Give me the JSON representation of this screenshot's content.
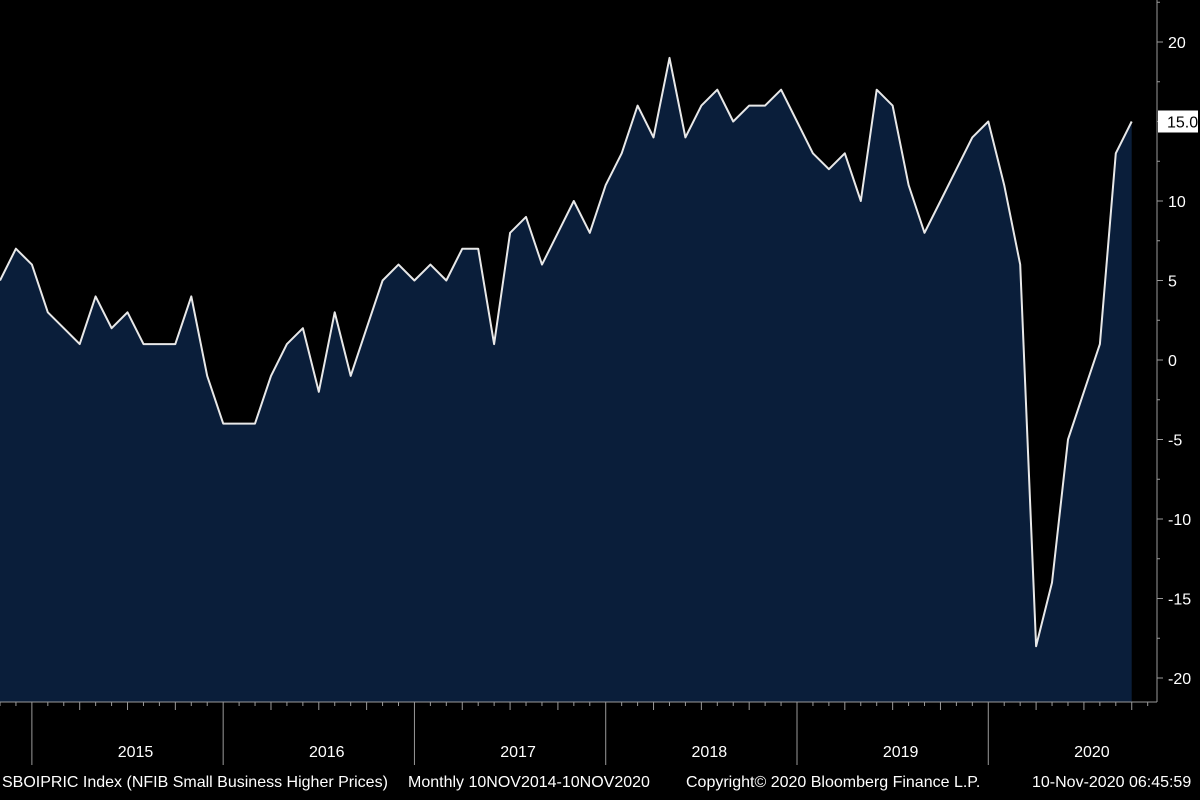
{
  "colors": {
    "background": "#000000",
    "area_fill": "#0a1e3a",
    "line": "#e8e8e8",
    "axis": "#9a9a9a",
    "last_value_box": "#ffffff",
    "last_value_text": "#000000"
  },
  "footer": {
    "series_label": "SBOIPRIC Index (NFIB Small Business Higher Prices)",
    "range_label": "Monthly 10NOV2014-10NOV2020",
    "copyright": "Copyright© 2020 Bloomberg Finance L.P.",
    "timestamp": "10-Nov-2020 06:45:59"
  },
  "chart_data": {
    "type": "area",
    "title": "",
    "xlabel": "",
    "ylabel": "",
    "last_value_label": "15.0",
    "ylim": [
      -22,
      23
    ],
    "y_ticks": [
      20,
      15,
      10,
      5,
      0,
      -5,
      -10,
      -15,
      -20
    ],
    "y_tick_labels": [
      "20",
      "15",
      "10",
      "5",
      "0",
      "-5",
      "-10",
      "-15",
      "-20"
    ],
    "x_start_month": "2014-11",
    "year_labels": [
      "2015",
      "2016",
      "2017",
      "2018",
      "2019",
      "2020"
    ],
    "grid": false,
    "series": [
      {
        "values": [
          5,
          7,
          6,
          3,
          2,
          1,
          4,
          2,
          3,
          1,
          1,
          1,
          4,
          -1,
          -4,
          -4,
          -4,
          -1,
          1,
          2,
          -2,
          3,
          -1,
          2,
          5,
          6,
          5,
          6,
          5,
          7,
          7,
          1,
          8,
          9,
          6,
          8,
          10,
          8,
          11,
          13,
          16,
          14,
          19,
          14,
          16,
          17,
          15,
          16,
          16,
          17,
          15,
          13,
          12,
          13,
          10,
          17,
          16,
          11,
          8,
          10,
          12,
          14,
          15,
          11,
          6,
          -18,
          -14,
          -5,
          -2,
          1,
          13,
          15
        ]
      }
    ]
  }
}
